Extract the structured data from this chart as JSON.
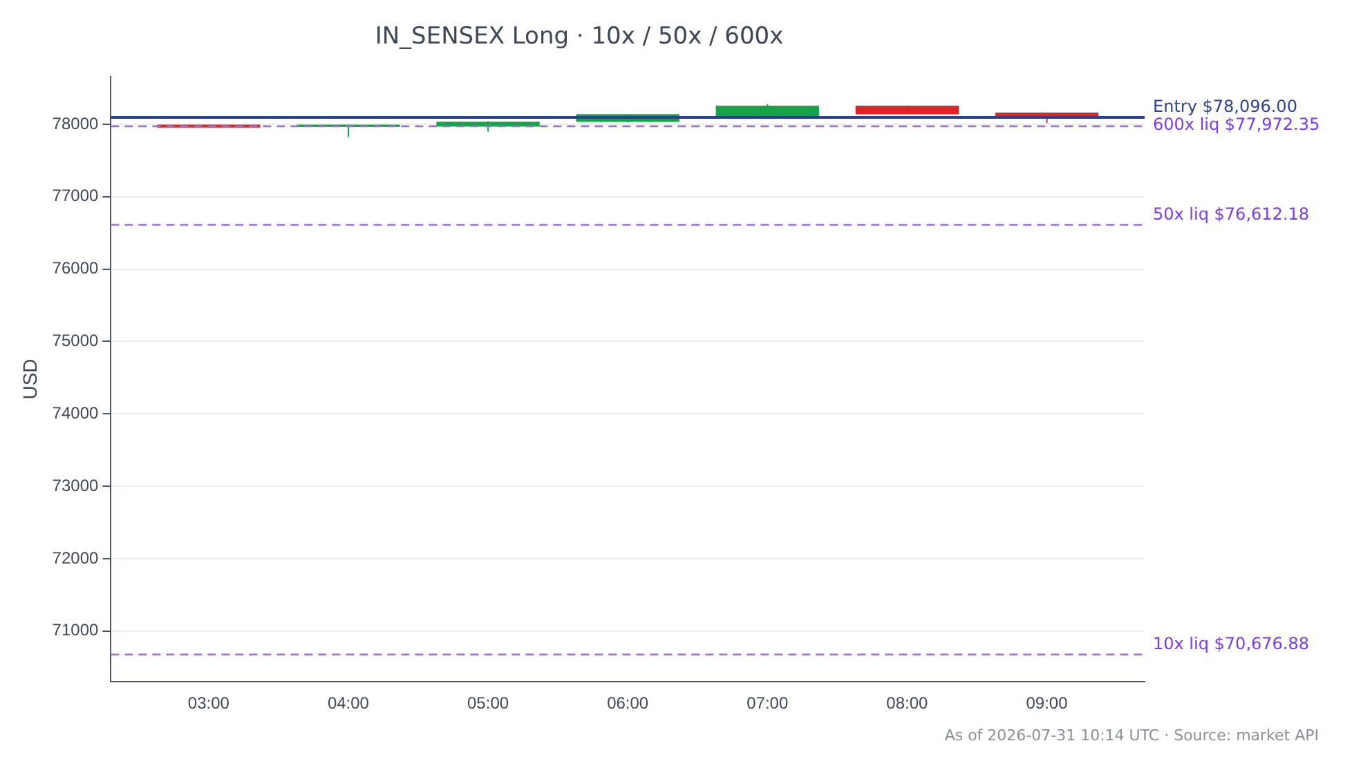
{
  "chart_data": {
    "type": "candlestick",
    "title": "IN_SENSEX Long · 10x / 50x / 600x",
    "ylabel": "USD",
    "x": [
      3,
      4,
      5,
      6,
      7,
      8,
      9
    ],
    "ohlc": [
      [
        77990,
        77995,
        77955,
        77960
      ],
      [
        77968,
        77992,
        77825,
        77988
      ],
      [
        77975,
        78040,
        77900,
        78030
      ],
      [
        78040,
        78140,
        78030,
        78135
      ],
      [
        78115,
        78280,
        78110,
        78250
      ],
      [
        78250,
        78260,
        78140,
        78145
      ],
      [
        78155,
        78160,
        78020,
        78115
      ]
    ],
    "xlim": [
      2.3,
      9.7
    ],
    "xticks": [
      {
        "value": 3,
        "label": "03:00"
      },
      {
        "value": 4,
        "label": "04:00"
      },
      {
        "value": 5,
        "label": "05:00"
      },
      {
        "value": 6,
        "label": "06:00"
      },
      {
        "value": 7,
        "label": "07:00"
      },
      {
        "value": 8,
        "label": "08:00"
      },
      {
        "value": 9,
        "label": "09:00"
      }
    ],
    "ylim": [
      70300,
      78660
    ],
    "yticks": [
      71000,
      72000,
      73000,
      74000,
      75000,
      76000,
      77000,
      78000
    ],
    "ref_lines": [
      {
        "axis": "y",
        "value": 78096,
        "label": "Entry $78,096.00",
        "color": "#2b3f94",
        "line_style": "solid"
      },
      {
        "axis": "y",
        "value": 77972.35,
        "label": "600x liq $77,972.35",
        "color": "#9b6fd6",
        "line_style": "dashed"
      },
      {
        "axis": "y",
        "value": 76612.18,
        "label": "50x liq $76,612.18",
        "color": "#9b6fd6",
        "line_style": "dashed"
      },
      {
        "axis": "y",
        "value": 70676.88,
        "label": "10x liq $70,676.88",
        "color": "#9b6fd6",
        "line_style": "dashed"
      }
    ],
    "annotations": [
      "As of 2026-07-31 10:14 UTC · Source: market API"
    ],
    "grid": "y",
    "legend": false
  }
}
